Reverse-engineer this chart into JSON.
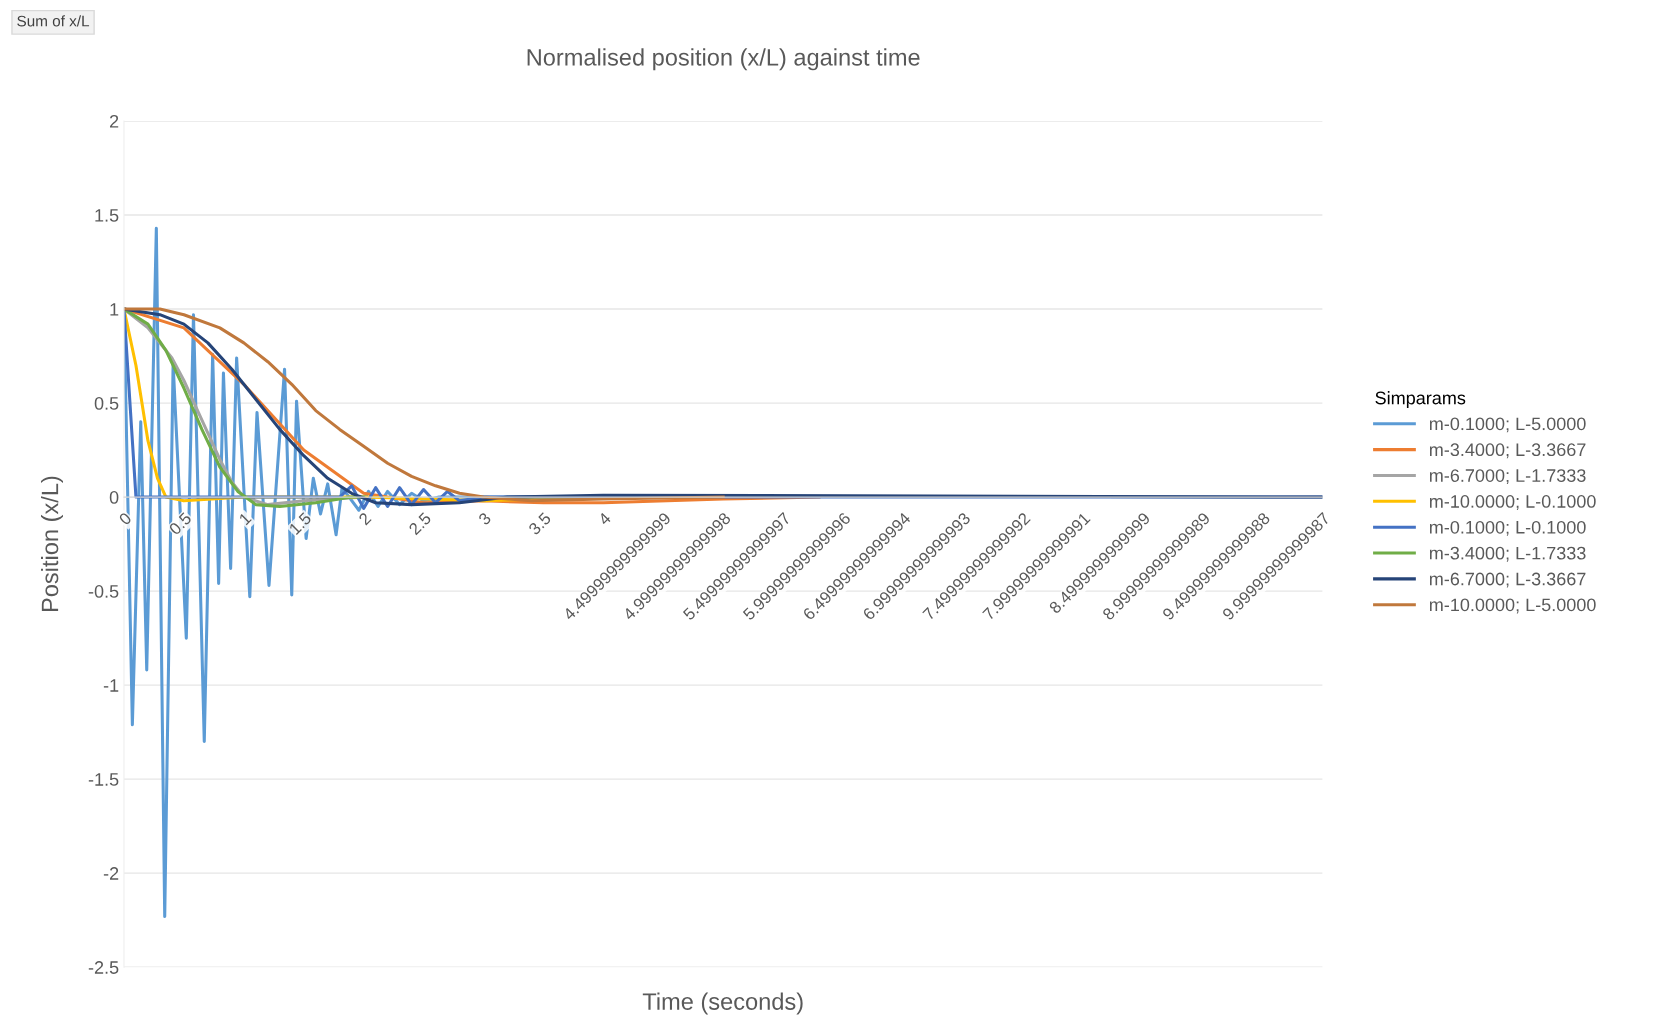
{
  "chart_data": {
    "type": "line",
    "title": "Normalised position (x/L) against time",
    "xlabel": "Time (seconds)",
    "ylabel": "Position (x/L)",
    "legend_title": "Simparams",
    "annotations": [
      "Sum of x/L"
    ],
    "xlim": [
      0,
      10
    ],
    "ylim": [
      -2.5,
      2
    ],
    "yticks": [
      -2.5,
      -2,
      -1.5,
      -1,
      -0.5,
      0,
      0.5,
      1,
      1.5,
      2
    ],
    "xticks": [
      0,
      0.5,
      1,
      1.5,
      2,
      2.5,
      3,
      3.5,
      4,
      {
        "value": 4.5,
        "label": "4.49999999999999"
      },
      {
        "value": 5,
        "label": "4.99999999999998"
      },
      {
        "value": 5.5,
        "label": "5.49999999999997"
      },
      {
        "value": 6,
        "label": "5.99999999999996"
      },
      {
        "value": 6.5,
        "label": "6.49999999999994"
      },
      {
        "value": 7,
        "label": "6.99999999999993"
      },
      {
        "value": 7.5,
        "label": "7.49999999999992"
      },
      {
        "value": 8,
        "label": "7.99999999999991"
      },
      {
        "value": 8.5,
        "label": "8.4999999999999"
      },
      {
        "value": 9,
        "label": "8.99999999999989"
      },
      {
        "value": 9.5,
        "label": "9.49999999999988"
      },
      {
        "value": 10,
        "label": "9.99999999999987"
      }
    ],
    "grid": "y",
    "legend": "right",
    "line_style": "solid",
    "marker": "none",
    "series": [
      {
        "name": "m-0.1000; L-5.0000",
        "color": "#5b9bd5",
        "x": [
          0,
          0.07,
          0.14,
          0.19,
          0.27,
          0.34,
          0.41,
          0.52,
          0.58,
          0.67,
          0.74,
          0.79,
          0.83,
          0.89,
          0.94,
          1.05,
          1.11,
          1.21,
          1.34,
          1.4,
          1.44,
          1.52,
          1.58,
          1.64,
          1.7,
          1.77,
          1.82,
          1.96,
          2.04,
          2.12,
          2.2,
          2.3,
          2.4,
          2.5,
          2.63,
          3,
          4
        ],
        "values": [
          1,
          -1.21,
          0.4,
          -0.92,
          1.43,
          -2.23,
          0.71,
          -0.75,
          0.97,
          -1.3,
          0.76,
          -0.46,
          0.66,
          -0.38,
          0.74,
          -0.53,
          0.45,
          -0.47,
          0.68,
          -0.52,
          0.51,
          -0.22,
          0.1,
          -0.09,
          0.07,
          -0.2,
          0.05,
          -0.07,
          0.03,
          -0.05,
          0.03,
          -0.04,
          0.02,
          -0.02,
          0,
          0,
          0
        ]
      },
      {
        "name": "m-3.4000; L-3.3667",
        "color": "#ed7d31",
        "x": [
          0,
          0.5,
          1,
          1.5,
          2,
          2.5,
          3,
          3.5,
          4,
          5,
          5.8
        ],
        "values": [
          1,
          0.9,
          0.6,
          0.25,
          0.02,
          -0.03,
          -0.02,
          -0.03,
          -0.03,
          -0.01,
          0
        ]
      },
      {
        "name": "m-6.7000; L-1.7333",
        "color": "#a5a5a5",
        "x": [
          0,
          0.2,
          0.4,
          0.5,
          0.6,
          0.7,
          0.8,
          0.9,
          1.0,
          1.2,
          1.5,
          2
        ],
        "values": [
          1,
          0.9,
          0.74,
          0.62,
          0.48,
          0.34,
          0.2,
          0.08,
          0.0,
          -0.04,
          -0.02,
          0
        ]
      },
      {
        "name": "m-10.0000; L-0.1000",
        "color": "#ffc000",
        "x": [
          0,
          0.05,
          0.1,
          0.15,
          0.2,
          0.28,
          0.35,
          0.5,
          1,
          2,
          3,
          4
        ],
        "values": [
          1,
          0.85,
          0.7,
          0.5,
          0.3,
          0.1,
          0.0,
          -0.02,
          0.0,
          0.0,
          -0.02,
          0
        ]
      },
      {
        "name": "m-0.1000; L-0.1000",
        "color": "#4472c4",
        "x": [
          0,
          0.1,
          0.2,
          1.8,
          1.9,
          2.0,
          2.1,
          2.2,
          2.3,
          2.4,
          2.5,
          2.6,
          2.7,
          2.8,
          3,
          10
        ],
        "values": [
          1,
          0.0,
          0.0,
          0.0,
          0.06,
          -0.06,
          0.05,
          -0.05,
          0.05,
          -0.04,
          0.04,
          -0.03,
          0.03,
          -0.02,
          0,
          0
        ]
      },
      {
        "name": "m-3.4000; L-1.7333",
        "color": "#70ad47",
        "x": [
          0,
          0.2,
          0.35,
          0.5,
          0.65,
          0.8,
          0.95,
          1.1,
          1.3,
          1.6,
          1.9,
          2.0
        ],
        "values": [
          1,
          0.92,
          0.78,
          0.58,
          0.36,
          0.16,
          0.03,
          -0.04,
          -0.05,
          -0.03,
          0.0,
          0.0
        ]
      },
      {
        "name": "m-6.7000; L-3.3667",
        "color": "#264478",
        "x": [
          0,
          0.3,
          0.5,
          0.7,
          0.9,
          1.1,
          1.3,
          1.5,
          1.7,
          1.9,
          2.1,
          2.4,
          2.8,
          3.2,
          4,
          10
        ],
        "values": [
          1,
          0.97,
          0.92,
          0.82,
          0.68,
          0.52,
          0.36,
          0.22,
          0.1,
          0.02,
          -0.03,
          -0.04,
          -0.03,
          0,
          0.01,
          0
        ]
      },
      {
        "name": "m-10.0000; L-5.0000",
        "color": "#c0783c",
        "x": [
          0,
          0.3,
          0.5,
          0.8,
          1.0,
          1.2,
          1.4,
          1.6,
          1.8,
          2.0,
          2.2,
          2.4,
          2.6,
          2.8,
          3.0,
          3.4,
          4,
          5
        ],
        "values": [
          1,
          1.0,
          0.97,
          0.9,
          0.82,
          0.72,
          0.6,
          0.46,
          0.36,
          0.27,
          0.18,
          0.11,
          0.06,
          0.02,
          0.0,
          -0.02,
          -0.01,
          0
        ]
      }
    ]
  }
}
